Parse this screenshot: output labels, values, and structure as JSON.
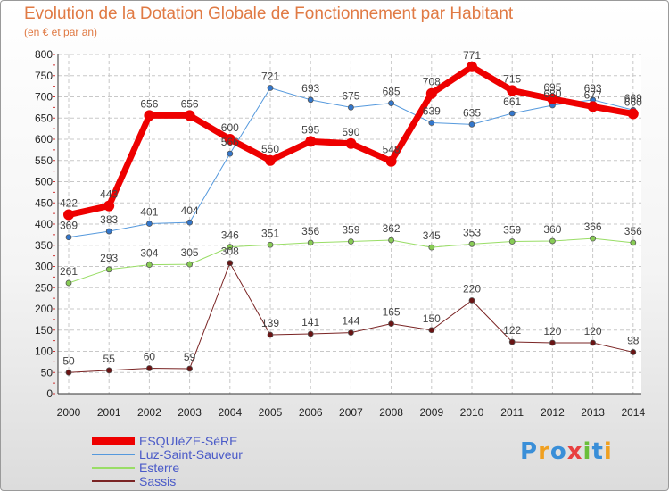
{
  "title": "Evolution de la Dotation Globale de Fonctionnement par Habitant",
  "subtitle": "(en € et par an)",
  "logo": {
    "letters": [
      {
        "ch": "P",
        "color": "#3a8fd8"
      },
      {
        "ch": "r",
        "color": "#f0a020"
      },
      {
        "ch": "o",
        "color": "#3a8fd8"
      },
      {
        "ch": "x",
        "color": "#e84040"
      },
      {
        "ch": "i",
        "color": "#6bbf3a"
      },
      {
        "ch": "t",
        "color": "#3a8fd8"
      },
      {
        "ch": "i",
        "color": "#f0a020"
      }
    ]
  },
  "chart_data": {
    "type": "line",
    "title": "Evolution de la Dotation Globale de Fonctionnement par Habitant",
    "subtitle": "(en € et par an)",
    "x": [
      "2000",
      "2001",
      "2002",
      "2003",
      "2004",
      "2005",
      "2006",
      "2007",
      "2008",
      "2009",
      "2010",
      "2011",
      "2012",
      "2013",
      "2014"
    ],
    "ylim": [
      0,
      800
    ],
    "yticks": [
      0,
      50,
      100,
      150,
      200,
      250,
      300,
      350,
      400,
      450,
      500,
      550,
      600,
      650,
      700,
      750,
      800
    ],
    "grid": true,
    "legend": "bottom-left",
    "series": [
      {
        "name": "Sassis",
        "color": "#7a2424",
        "markerColor": "#6a1414",
        "width": 1,
        "values": [
          50,
          55,
          60,
          59,
          308,
          139,
          141,
          144,
          165,
          150,
          220,
          122,
          120,
          120,
          98
        ],
        "labels": [
          "50",
          "55",
          "60",
          "59",
          "308",
          "139",
          "141",
          "144",
          "165",
          "150",
          "220",
          "122",
          "120",
          "120",
          "98"
        ]
      },
      {
        "name": "Esterre",
        "color": "#99dd66",
        "markerColor": "#88cc55",
        "width": 1,
        "values": [
          261,
          293,
          304,
          305,
          346,
          351,
          356,
          359,
          362,
          345,
          353,
          359,
          360,
          366,
          356
        ],
        "labels": [
          "261",
          "293",
          "304",
          "305",
          "346",
          "351",
          "356",
          "359",
          "362",
          "345",
          "353",
          "359",
          "360",
          "366",
          "356"
        ]
      },
      {
        "name": "Luz-Saint-Sauveur",
        "color": "#5599dd",
        "markerColor": "#3377cc",
        "width": 1,
        "values": [
          369,
          383,
          401,
          404,
          566,
          721,
          693,
          675,
          685,
          639,
          635,
          661,
          680,
          693,
          669
        ],
        "labels": [
          "369",
          "383",
          "401",
          "404",
          "566",
          "721",
          "693",
          "675",
          "685",
          "639",
          "635",
          "661",
          "680",
          "693",
          "669"
        ]
      },
      {
        "name": "ESQUIèZE-SèRE",
        "color": "#ee0000",
        "markerColor": "#ee0000",
        "width": 7,
        "values": [
          422,
          443,
          656,
          656,
          600,
          550,
          595,
          590,
          548,
          708,
          771,
          715,
          695,
          677,
          660
        ],
        "labels": [
          "422",
          "443",
          "656",
          "656",
          "600",
          "550",
          "595",
          "590",
          "548",
          "708",
          "771",
          "715",
          "695",
          "677",
          "660"
        ]
      }
    ],
    "legend_order": [
      "ESQUIèZE-SèRE",
      "Luz-Saint-Sauveur",
      "Esterre",
      "Sassis"
    ]
  }
}
